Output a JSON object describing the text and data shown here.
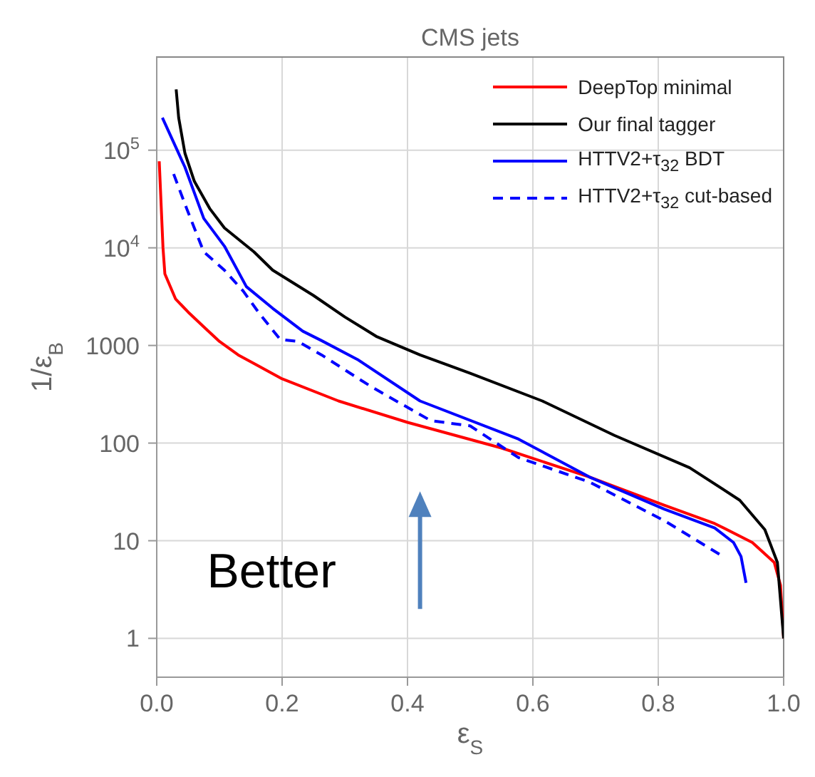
{
  "chart_data": {
    "type": "line",
    "title": "CMS jets",
    "xlabel": "ε$_{S}$",
    "ylabel": "1/ε$_{B}$",
    "log": "y",
    "grid": true,
    "legend": "top right",
    "marker": "none",
    "xlim": [
      0,
      1
    ],
    "xticks": [
      {
        "value": 0,
        "label": "0.0"
      },
      0.2,
      0.4,
      0.6,
      0.8,
      {
        "value": 1,
        "label": "1.0"
      }
    ],
    "ylim": [
      0.4,
      900000
    ],
    "yticks": [
      1,
      10,
      100,
      1000,
      {
        "value": 10000,
        "label": "10$^{4}$"
      },
      {
        "value": 100000,
        "label": "10$^{5}$"
      }
    ],
    "annotations": [
      "Better"
    ],
    "series": [
      {
        "name": "DeepTop minimal",
        "color": "#ff0000",
        "x": [
          0.004,
          0.01,
          0.013,
          0.03,
          0.05,
          0.075,
          0.1,
          0.13,
          0.2,
          0.29,
          0.4,
          0.55,
          0.69,
          0.81,
          0.89,
          0.95,
          0.985,
          0.995,
          1
        ],
        "values": [
          77000,
          10000,
          5400,
          3000,
          2200,
          1550,
          1100,
          800,
          455,
          270,
          163,
          89,
          45,
          23,
          15,
          9.6,
          6,
          3.5,
          1
        ]
      },
      {
        "name": "Our final tagger",
        "color": "#000000",
        "x": [
          0.031,
          0.035,
          0.045,
          0.06,
          0.085,
          0.108,
          0.155,
          0.185,
          0.25,
          0.3,
          0.35,
          0.42,
          0.5,
          0.615,
          0.73,
          0.85,
          0.93,
          0.97,
          0.99,
          1
        ],
        "values": [
          420000,
          215000,
          93000,
          48000,
          25000,
          16000,
          9100,
          5900,
          3250,
          1960,
          1240,
          800,
          520,
          270,
          120,
          56,
          26,
          13,
          6,
          1
        ]
      },
      {
        "name": "HTTV2+τ$_{32}$ BDT",
        "color": "#0000ff",
        "x": [
          0.009,
          0.045,
          0.075,
          0.108,
          0.143,
          0.185,
          0.233,
          0.263,
          0.32,
          0.42,
          0.577,
          0.69,
          0.81,
          0.89,
          0.92,
          0.932,
          0.94
        ],
        "values": [
          215000,
          67000,
          20000,
          10400,
          4000,
          2400,
          1400,
          1120,
          720,
          270,
          110,
          45,
          21,
          13.5,
          9.6,
          6.9,
          3.7
        ]
      },
      {
        "name": "HTTV2+τ$_{32}$ cut-based",
        "color": "#0000ff",
        "line_style": "dashed",
        "x": [
          0.027,
          0.048,
          0.075,
          0.108,
          0.138,
          0.162,
          0.197,
          0.225,
          0.263,
          0.326,
          0.343,
          0.437,
          0.5,
          0.577,
          0.69,
          0.81,
          0.9
        ],
        "values": [
          57000,
          25000,
          9100,
          5900,
          3600,
          2200,
          1150,
          1100,
          800,
          440,
          375,
          170,
          150,
          71,
          40,
          16,
          7.1
        ]
      }
    ]
  }
}
